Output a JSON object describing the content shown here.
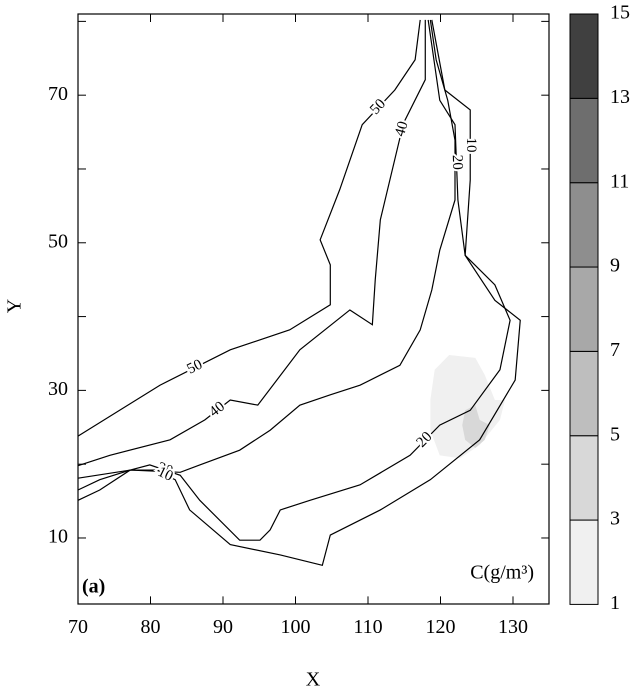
{
  "chart_data": {
    "type": "contour",
    "x_label": "X",
    "y_label": "Y",
    "panel_label": "(a)",
    "colorbar_label": "C(g/m³)",
    "xlim": [
      70,
      135
    ],
    "ylim": [
      1,
      81
    ],
    "xticks": [
      70,
      80,
      90,
      100,
      110,
      120,
      130
    ],
    "yticks": [
      10,
      30,
      50,
      70
    ],
    "yminorticks": [
      20,
      40,
      60,
      80
    ],
    "line_color": "#000000",
    "contours": [
      {
        "level": 50,
        "x": [
          70,
          81.3,
          91,
          99.2,
          104.8,
          104.8,
          103.4,
          106.1,
          109.2,
          113.7,
          116.5,
          117.2
        ],
        "y": [
          23.8,
          30.7,
          35.5,
          38.2,
          41.6,
          47.0,
          50.4,
          57.2,
          66.0,
          70.7,
          74.8,
          80.2
        ]
      },
      {
        "level": 40,
        "x": [
          70,
          74.4,
          82.7,
          87.5,
          91,
          94.8,
          100.6,
          107.5,
          110.6,
          111,
          111.7,
          114.4,
          115.1,
          117.9,
          117.9
        ],
        "y": [
          19.8,
          21.2,
          23.3,
          26,
          28.7,
          28,
          35.5,
          40.9,
          38.9,
          45,
          53.1,
          64.2,
          66.6,
          72.1,
          80.2
        ]
      },
      {
        "level": 30,
        "x": [
          70,
          77.2,
          84.1,
          86.8,
          92.3,
          96.5,
          100.6,
          104.8,
          108.9,
          114.4,
          117.2,
          118.8,
          119.9,
          122,
          122,
          121,
          119.4,
          118.6
        ],
        "y": [
          18.1,
          19.2,
          18.9,
          19.9,
          21.9,
          24.6,
          28,
          29.4,
          30.7,
          33.4,
          38.2,
          43.6,
          49,
          55.8,
          63.9,
          69.3,
          74.8,
          80.2
        ]
      },
      {
        "level": 20,
        "x": [
          118.3,
          119.9,
          122,
          122.4,
          123.4,
          127.5,
          129.6,
          128.2,
          124.1,
          119.9,
          115.8,
          108.9,
          102,
          97.9,
          96.5,
          95.1,
          92.3,
          86.8,
          84.1,
          79.9,
          77.2,
          73,
          70
        ],
        "y": [
          80.2,
          69.3,
          66,
          55.8,
          48.3,
          44.3,
          39.5,
          32.8,
          27.3,
          25.3,
          21.2,
          17.2,
          15.1,
          13.8,
          11.1,
          9.7,
          9.7,
          15.1,
          18.5,
          19.9,
          19.2,
          17.9,
          16.5
        ]
      },
      {
        "level": 10,
        "x": [
          118.8,
          120.6,
          124.1,
          124.1,
          123.4,
          127.5,
          131,
          130.3,
          125.4,
          118.6,
          111.7,
          104.8,
          103.7,
          97.9,
          91,
          85.4,
          83.4,
          80.6,
          77.2,
          73,
          70
        ],
        "y": [
          80.2,
          70.7,
          68,
          58.5,
          48.3,
          42.2,
          39.5,
          31.4,
          23.3,
          17.9,
          13.8,
          10.4,
          6.3,
          7.7,
          9.1,
          13.8,
          17.9,
          19.2,
          19.2,
          16.5,
          15.1
        ]
      }
    ],
    "filled_regions": [
      {
        "level": [
          1,
          3
        ],
        "x": [
          119.2,
          121.2,
          124.8,
          126.1,
          127.5,
          128.9,
          128.2,
          125.4,
          122.7,
          119.9,
          118.6,
          118.6
        ],
        "y": [
          32.8,
          34.8,
          34.4,
          32.1,
          28.7,
          28.7,
          26.0,
          22.6,
          20.8,
          21.2,
          24.6,
          28.7
        ]
      },
      {
        "level": [
          3,
          5
        ],
        "x": [
          123.4,
          124.8,
          125.4,
          126.8,
          126.1,
          124.8,
          123.4,
          123.0
        ],
        "y": [
          27.3,
          28.0,
          26.0,
          25.3,
          23.3,
          22.2,
          23.3,
          25.3
        ]
      }
    ],
    "colorbar": {
      "levels": [
        1,
        3,
        5,
        7,
        9,
        11,
        13,
        15
      ],
      "colors": [
        "#f0f0f0",
        "#d8d8d8",
        "#bebebe",
        "#a8a8a8",
        "#8e8e8e",
        "#6e6e6e",
        "#404040"
      ]
    }
  }
}
